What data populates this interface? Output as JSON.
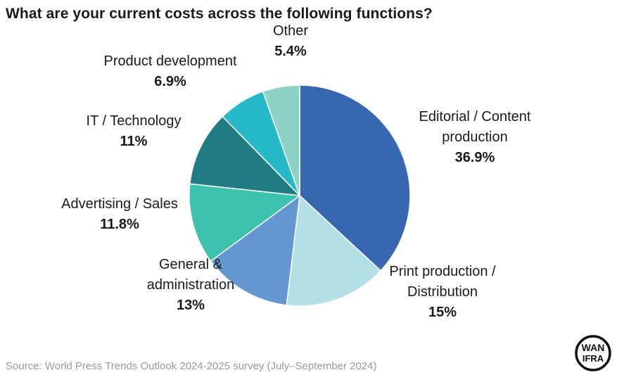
{
  "title": "What are your current costs across the following functions?",
  "source": "Source: World Press Trends Outlook 2024-2025 survey (July–September 2024)",
  "logo": {
    "name": "wan-ifra-logo",
    "text_top": "WAN",
    "text_bottom": "IFRA"
  },
  "chart_data": {
    "type": "pie",
    "title": "What are your current costs across the following functions?",
    "start": "12 o'clock, clockwise",
    "slices": [
      {
        "label": "Editorial / Content production",
        "value": 36.9,
        "display": "36.9%",
        "color": "#3767b1"
      },
      {
        "label": "Print production / Distribution",
        "value": 15,
        "display": "15%",
        "color": "#b3e0e6"
      },
      {
        "label": "General & administration",
        "value": 13,
        "display": "13%",
        "color": "#6496cf"
      },
      {
        "label": "Advertising / Sales",
        "value": 11.8,
        "display": "11.8%",
        "color": "#3ec1ad"
      },
      {
        "label": "IT / Technology",
        "value": 11,
        "display": "11%",
        "color": "#217b82"
      },
      {
        "label": "Product development",
        "value": 6.9,
        "display": "6.9%",
        "color": "#28b9c9"
      },
      {
        "label": "Other",
        "value": 5.4,
        "display": "5.4%",
        "color": "#8ed2c6"
      }
    ],
    "label_lines": [
      [
        "Editorial / Content",
        "production"
      ],
      [
        "Print production /",
        "Distribution"
      ],
      [
        "General &",
        "administration"
      ],
      [
        "Advertising / Sales"
      ],
      [
        "IT / Technology"
      ],
      [
        "Product development"
      ],
      [
        "Other"
      ]
    ]
  }
}
